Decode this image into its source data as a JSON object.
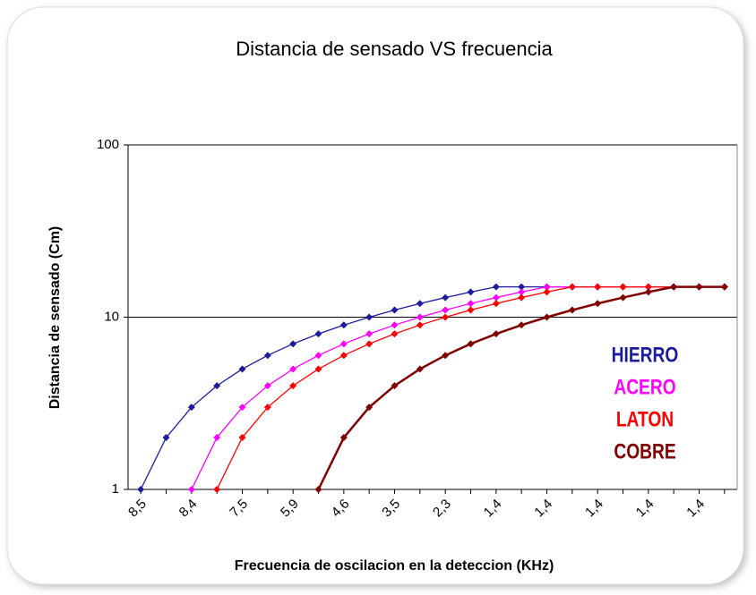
{
  "chart_data": {
    "type": "line",
    "title": "Distancia de sensado VS frecuencia",
    "x_label": "Frecuencia de oscilacion en la deteccion (KHz)",
    "y_label": "Distancia de sensado (Cm)",
    "categories": [
      "8,5",
      null,
      "8,4",
      null,
      "7,5",
      null,
      "5,9",
      null,
      "4,6",
      null,
      "3,5",
      null,
      "2,3",
      null,
      "1,4",
      null,
      "1,4",
      null,
      "1,4",
      null,
      "1,4",
      null,
      "1,4",
      null
    ],
    "y_scale": "log",
    "ylim": [
      1,
      100
    ],
    "yticks": [
      1,
      10,
      100
    ],
    "grid": true,
    "legend": "right",
    "series": [
      {
        "name": "HIERRO",
        "color": "#1c1c9c",
        "values": [
          1,
          2,
          3,
          4,
          5,
          6,
          7,
          8,
          9,
          10,
          11,
          12,
          13,
          14,
          15,
          15,
          15,
          15,
          15,
          15,
          15,
          15,
          15,
          15
        ]
      },
      {
        "name": "ACERO",
        "color": "#ff00ff",
        "values": [
          null,
          null,
          1,
          2,
          3,
          4,
          5,
          6,
          7,
          8,
          9,
          10,
          11,
          12,
          13,
          14,
          15,
          15,
          15,
          15,
          15,
          15,
          15,
          15
        ]
      },
      {
        "name": "LATON",
        "color": "#ff0000",
        "values": [
          null,
          null,
          null,
          1,
          2,
          3,
          4,
          5,
          6,
          7,
          8,
          9,
          10,
          11,
          12,
          13,
          14,
          15,
          15,
          15,
          15,
          15,
          15,
          15
        ]
      },
      {
        "name": "COBRE",
        "color": "#800000",
        "values": [
          null,
          null,
          null,
          null,
          null,
          null,
          null,
          1,
          2,
          3,
          4,
          5,
          6,
          7,
          8,
          9,
          10,
          11,
          12,
          13,
          14,
          15,
          15,
          15
        ]
      }
    ]
  }
}
